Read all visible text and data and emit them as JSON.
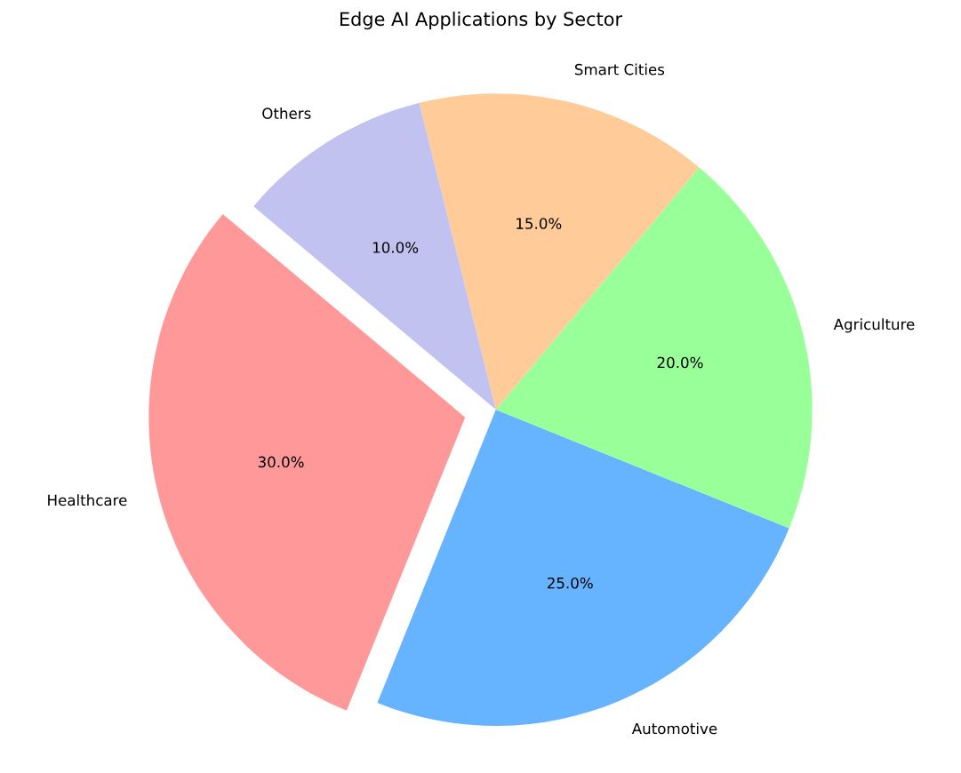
{
  "chart_data": {
    "type": "pie",
    "title": "Edge AI Applications by Sector",
    "categories": [
      "Healthcare",
      "Automotive",
      "Agriculture",
      "Smart Cities",
      "Others"
    ],
    "values": [
      30,
      25,
      20,
      15,
      10
    ],
    "colors": [
      "#ff9999",
      "#66b3ff",
      "#99ff99",
      "#ffcc99",
      "#c2c2f0"
    ],
    "value_labels": [
      "30.0%",
      "25.0%",
      "20.0%",
      "15.0%",
      "10.0%"
    ]
  }
}
